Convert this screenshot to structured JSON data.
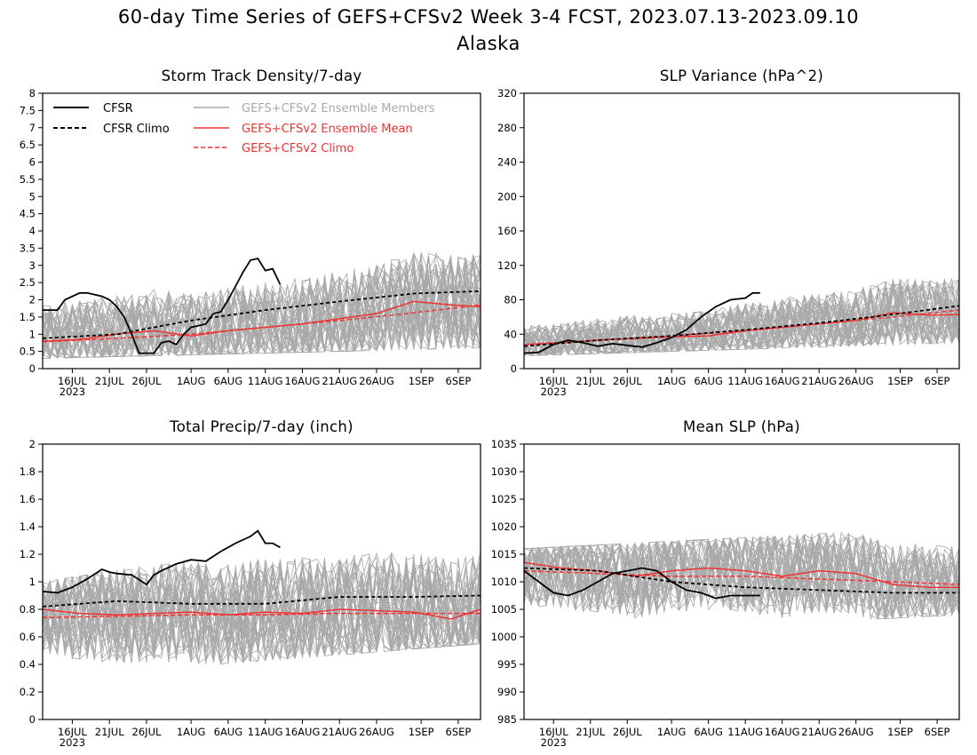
{
  "title": {
    "line1": "60-day Time Series of GEFS+CFSv2 Week 3-4 FCST, 2023.07.13-2023.09.10",
    "line2": "Alaska"
  },
  "colors": {
    "cfsr": "#000000",
    "members": "#a8a8a8",
    "ens_mean": "#ee3333"
  },
  "legend": {
    "cfsr": "CFSR",
    "cfsr_climo": "CFSR Climo",
    "members": "GEFS+CFSv2 Ensemble Members",
    "ens_mean": "GEFS+CFSv2 Ensemble Mean",
    "gefs_climo": "GEFS+CFSv2 Climo"
  },
  "x_axis": {
    "start_date": "2023-07-13",
    "end_date": "2023-09-10",
    "ticks": [
      {
        "x": 4,
        "label": "16JUL",
        "sub": "2023"
      },
      {
        "x": 9,
        "label": "21JUL"
      },
      {
        "x": 14,
        "label": "26JUL"
      },
      {
        "x": 20,
        "label": "1AUG"
      },
      {
        "x": 25,
        "label": "6AUG"
      },
      {
        "x": 30,
        "label": "11AUG"
      },
      {
        "x": 35,
        "label": "16AUG"
      },
      {
        "x": 40,
        "label": "21AUG"
      },
      {
        "x": 45,
        "label": "26AUG"
      },
      {
        "x": 51,
        "label": "1SEP"
      },
      {
        "x": 56,
        "label": "6SEP"
      }
    ]
  },
  "chart_data": [
    {
      "type": "line",
      "title": "Storm Track Density/7-day",
      "ylim": [
        0,
        8
      ],
      "yticks": [
        "0",
        "0.5",
        "1",
        "1.5",
        "2",
        "2.5",
        "3",
        "3.5",
        "4",
        "4.5",
        "5",
        "5.5",
        "6",
        "6.5",
        "7",
        "7.5",
        "8"
      ],
      "member_band": {
        "low": [
          0.3,
          0.6
        ],
        "high": [
          2.6,
          3.8
        ]
      },
      "series": [
        {
          "name": "CFSR",
          "x": [
            0,
            2,
            3,
            5,
            6,
            8,
            9,
            10,
            11,
            12,
            13,
            15,
            16,
            17,
            18,
            19,
            20,
            21,
            22,
            23,
            24,
            25,
            26,
            27,
            28,
            29,
            30,
            31,
            32
          ],
          "values": [
            1.7,
            1.7,
            2.0,
            2.2,
            2.2,
            2.1,
            2.0,
            1.8,
            1.5,
            1.0,
            0.45,
            0.45,
            0.75,
            0.8,
            0.7,
            1.0,
            1.2,
            1.25,
            1.3,
            1.6,
            1.65,
            2.0,
            2.4,
            2.8,
            3.15,
            3.2,
            2.85,
            2.9,
            2.45
          ]
        },
        {
          "name": "CFSR Climo",
          "x": [
            0,
            10,
            20,
            30,
            40,
            50,
            59
          ],
          "values": [
            0.88,
            1.0,
            1.4,
            1.7,
            1.95,
            2.18,
            2.25
          ]
        },
        {
          "name": "GEFS+CFSv2 Ensemble Mean",
          "x": [
            0,
            5,
            10,
            15,
            20,
            25,
            30,
            35,
            40,
            45,
            50,
            55,
            59
          ],
          "values": [
            0.8,
            0.85,
            1.0,
            1.1,
            0.95,
            1.1,
            1.2,
            1.3,
            1.45,
            1.6,
            1.95,
            1.85,
            1.8
          ]
        },
        {
          "name": "GEFS+CFSv2 Climo",
          "x": [
            0,
            10,
            20,
            30,
            40,
            50,
            59
          ],
          "values": [
            0.78,
            0.88,
            1.0,
            1.2,
            1.4,
            1.62,
            1.85
          ]
        }
      ]
    },
    {
      "type": "line",
      "title": "SLP Variance (hPa^2)",
      "ylim": [
        0,
        320
      ],
      "yticks": [
        "0",
        "40",
        "80",
        "120",
        "160",
        "200",
        "240",
        "280",
        "320"
      ],
      "member_band": {
        "low": [
          15,
          30
        ],
        "high": [
          60,
          120
        ]
      },
      "series": [
        {
          "name": "CFSR",
          "x": [
            0,
            2,
            4,
            6,
            8,
            10,
            12,
            14,
            16,
            18,
            20,
            22,
            24,
            26,
            28,
            30,
            31,
            32
          ],
          "values": [
            18,
            19,
            28,
            33,
            30,
            26,
            29,
            27,
            25,
            30,
            36,
            45,
            60,
            72,
            80,
            82,
            88,
            88
          ]
        },
        {
          "name": "CFSR Climo",
          "x": [
            0,
            10,
            20,
            30,
            40,
            50,
            59
          ],
          "values": [
            26,
            33,
            38,
            45,
            53,
            63,
            73
          ]
        },
        {
          "name": "GEFS+CFSv2 Ensemble Mean",
          "x": [
            0,
            5,
            10,
            15,
            20,
            25,
            30,
            35,
            40,
            45,
            50,
            55,
            59
          ],
          "values": [
            28,
            30,
            33,
            35,
            37,
            38,
            44,
            48,
            52,
            56,
            65,
            62,
            63
          ]
        },
        {
          "name": "GEFS+CFSv2 Climo",
          "x": [
            0,
            10,
            20,
            30,
            40,
            50,
            59
          ],
          "values": [
            28,
            33,
            38,
            44,
            52,
            60,
            68
          ]
        }
      ]
    },
    {
      "type": "line",
      "title": "Total Precip/7-day (inch)",
      "ylim": [
        0,
        2
      ],
      "yticks": [
        "0",
        "0.2",
        "0.4",
        "0.6",
        "0.8",
        "1",
        "1.2",
        "1.4",
        "1.6",
        "1.8",
        "2"
      ],
      "member_band": {
        "low": [
          0.3,
          0.55
        ],
        "high": [
          1.0,
          1.5
        ]
      },
      "series": [
        {
          "name": "CFSR",
          "x": [
            0,
            2,
            4,
            6,
            8,
            9,
            10,
            12,
            14,
            15,
            16,
            18,
            20,
            22,
            24,
            26,
            28,
            29,
            30,
            31,
            32
          ],
          "values": [
            0.93,
            0.92,
            0.96,
            1.02,
            1.09,
            1.07,
            1.06,
            1.05,
            0.98,
            1.05,
            1.08,
            1.13,
            1.16,
            1.15,
            1.22,
            1.28,
            1.33,
            1.37,
            1.28,
            1.28,
            1.25
          ]
        },
        {
          "name": "CFSR Climo",
          "x": [
            0,
            10,
            20,
            30,
            40,
            50,
            59
          ],
          "values": [
            0.82,
            0.86,
            0.84,
            0.84,
            0.89,
            0.89,
            0.9
          ]
        },
        {
          "name": "GEFS+CFSv2 Ensemble Mean",
          "x": [
            0,
            5,
            10,
            15,
            20,
            25,
            30,
            35,
            40,
            45,
            50,
            55,
            59
          ],
          "values": [
            0.8,
            0.77,
            0.76,
            0.77,
            0.78,
            0.76,
            0.78,
            0.77,
            0.8,
            0.79,
            0.78,
            0.73,
            0.8
          ]
        },
        {
          "name": "GEFS+CFSv2 Climo",
          "x": [
            0,
            10,
            20,
            30,
            40,
            50,
            59
          ],
          "values": [
            0.74,
            0.75,
            0.76,
            0.76,
            0.77,
            0.77,
            0.77
          ]
        }
      ]
    },
    {
      "type": "line",
      "title": "Mean SLP (hPa)",
      "ylim": [
        985,
        1035
      ],
      "yticks": [
        "985",
        "990",
        "995",
        "1000",
        "1005",
        "1010",
        "1015",
        "1020",
        "1025",
        "1030",
        "1035"
      ],
      "member_band": {
        "low": [
          1000,
          1004
        ],
        "high": [
          1016,
          1020
        ]
      },
      "series": [
        {
          "name": "CFSR",
          "x": [
            0,
            2,
            4,
            6,
            8,
            10,
            12,
            14,
            16,
            18,
            20,
            22,
            24,
            26,
            28,
            30,
            32
          ],
          "values": [
            1012,
            1010,
            1008,
            1007.5,
            1008.5,
            1010,
            1011.5,
            1012,
            1012.5,
            1012,
            1010,
            1008.5,
            1008,
            1007,
            1007.5,
            1007.5,
            1007.5
          ]
        },
        {
          "name": "CFSR Climo",
          "x": [
            0,
            10,
            20,
            30,
            40,
            50,
            59
          ],
          "values": [
            1012.5,
            1012,
            1010,
            1009,
            1008.5,
            1008,
            1008
          ]
        },
        {
          "name": "GEFS+CFSv2 Ensemble Mean",
          "x": [
            0,
            5,
            10,
            15,
            20,
            25,
            30,
            35,
            40,
            45,
            50,
            55,
            59
          ],
          "values": [
            1013.5,
            1012.5,
            1012,
            1011,
            1012,
            1012.5,
            1012,
            1011,
            1012,
            1011.5,
            1009.5,
            1009,
            1009
          ]
        },
        {
          "name": "GEFS+CFSv2 Climo",
          "x": [
            0,
            10,
            20,
            30,
            40,
            50,
            59
          ],
          "values": [
            1012,
            1011.5,
            1011,
            1011,
            1010.5,
            1010,
            1009.5
          ]
        }
      ]
    }
  ]
}
